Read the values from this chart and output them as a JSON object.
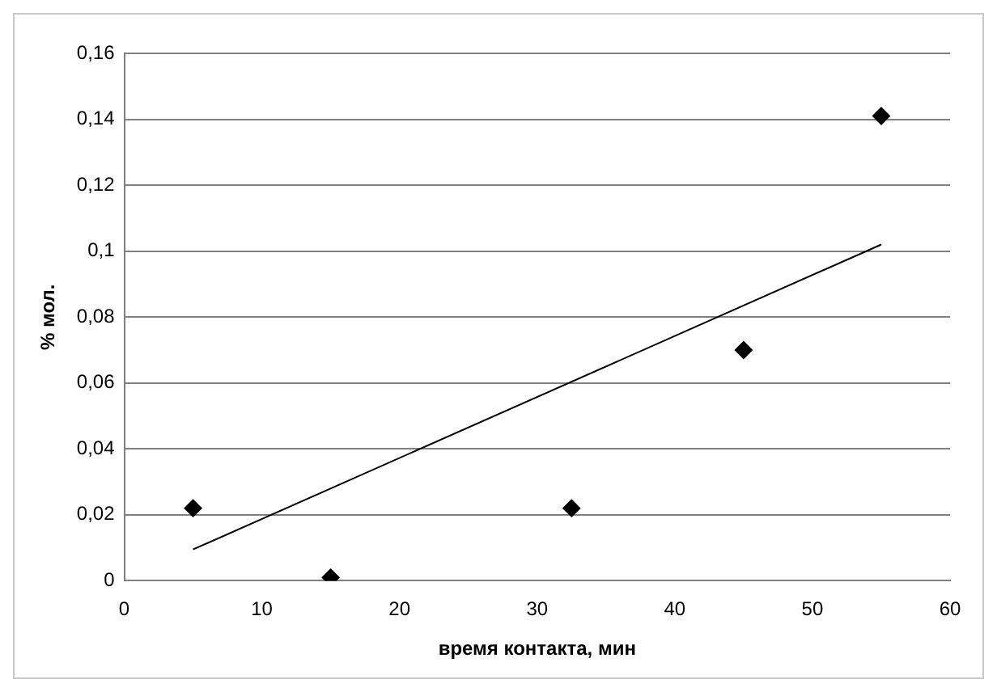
{
  "chart_data": {
    "type": "scatter",
    "xlabel": "время контакта, мин",
    "ylabel": "% мол.",
    "series": [
      {
        "type": "scatter",
        "color": "#000000",
        "marker": "diamond",
        "x": [
          5,
          15,
          32.5,
          45,
          55
        ],
        "values": [
          0.022,
          0.001,
          0.022,
          0.07,
          0.141
        ]
      },
      {
        "type": "line",
        "color": "#000000",
        "marker": "none",
        "x": [
          5,
          55
        ],
        "values": [
          0.0095,
          0.102
        ]
      }
    ],
    "xlim": [
      0,
      60
    ],
    "xticks": [
      0,
      10,
      20,
      30,
      40,
      50,
      60
    ],
    "ylim": [
      0,
      0.16
    ],
    "yticks": [
      {
        "value": 0,
        "label": "0"
      },
      {
        "value": 0.02,
        "label": "0,02"
      },
      {
        "value": 0.04,
        "label": "0,04"
      },
      {
        "value": 0.06,
        "label": "0,06"
      },
      {
        "value": 0.08,
        "label": "0,08"
      },
      {
        "value": 0.1,
        "label": "0,1"
      },
      {
        "value": 0.12,
        "label": "0,12"
      },
      {
        "value": 0.14,
        "label": "0,14"
      },
      {
        "value": 0.16,
        "label": "0,16"
      }
    ],
    "grid": "y",
    "legend": false
  }
}
